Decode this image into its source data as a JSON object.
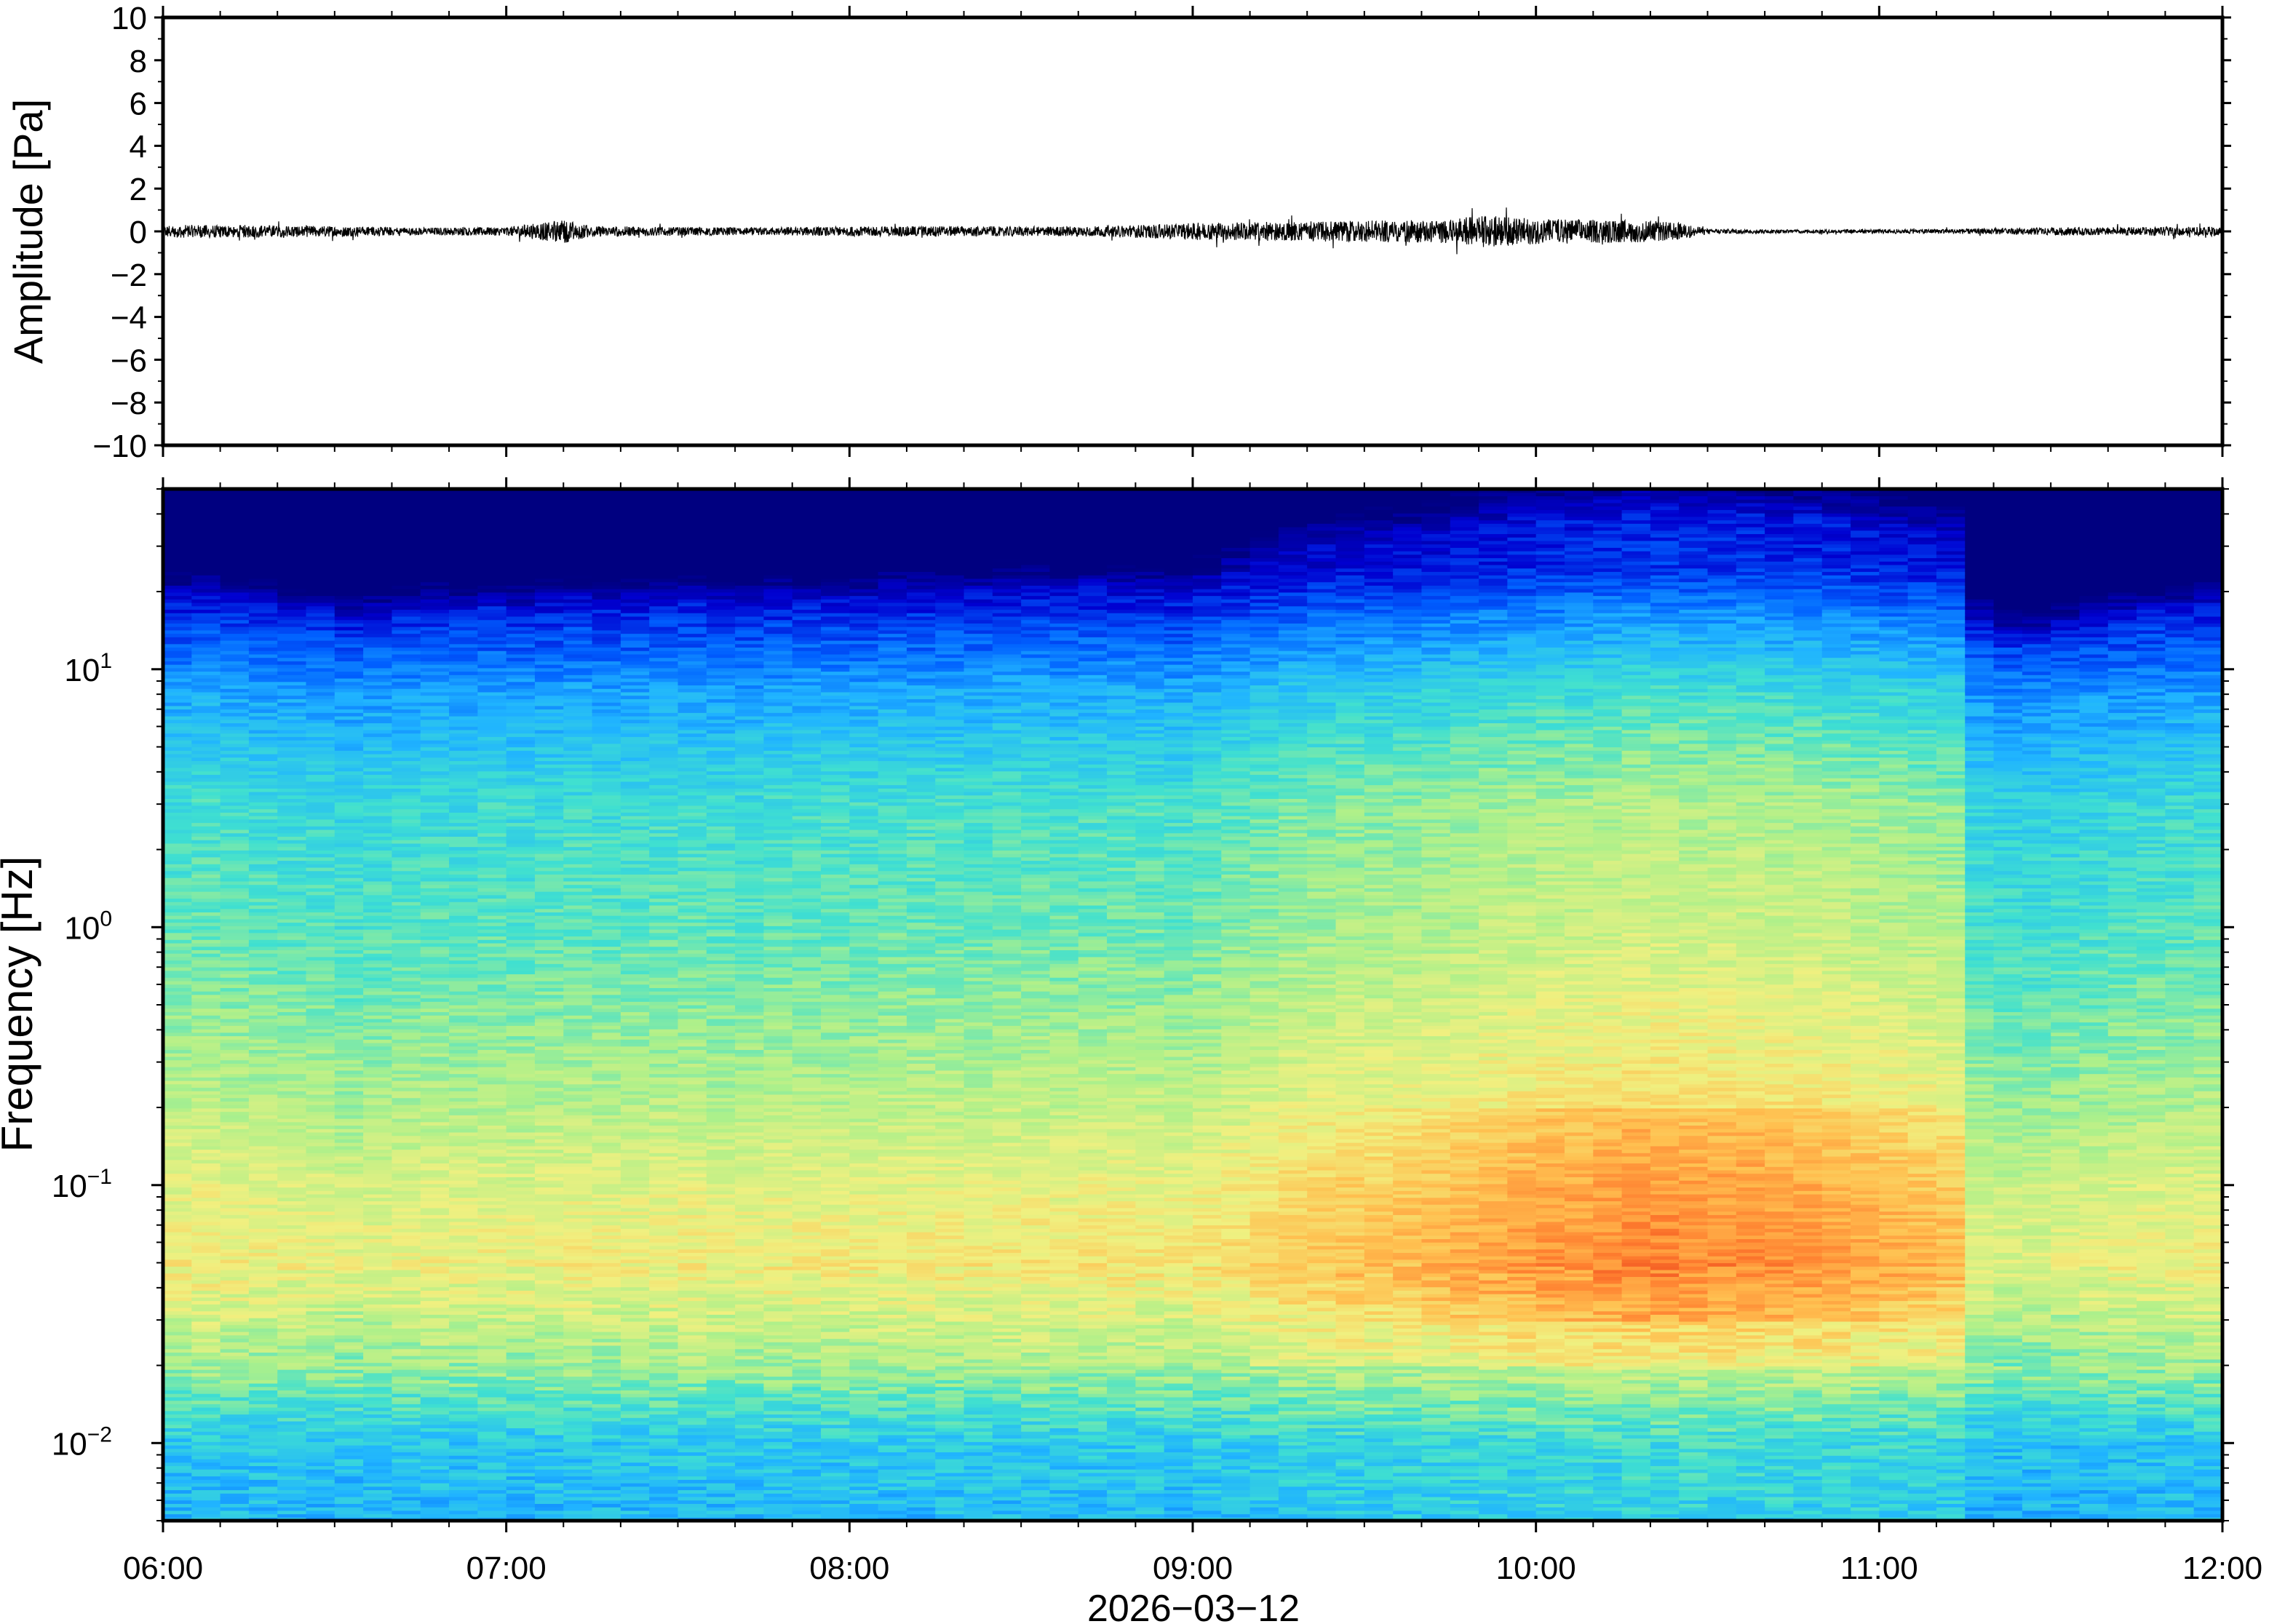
{
  "chart_data": [
    {
      "type": "line",
      "panel": "waveform",
      "ylabel": "Amplitude [Pa]",
      "ylim": [
        -10,
        10
      ],
      "yticks": [
        "10",
        "8",
        "6",
        "4",
        "2",
        "0",
        "−2",
        "−4",
        "−6",
        "−8",
        "−10"
      ],
      "ytick_values": [
        10,
        8,
        6,
        4,
        2,
        0,
        -2,
        -4,
        -6,
        -8,
        -10
      ],
      "xlim": [
        "2026-03-12T06:00",
        "2026-03-12T12:00"
      ],
      "series": [
        {
          "color": "#000000",
          "envelope_x": [
            "06:00",
            "06:15",
            "06:30",
            "06:45",
            "07:00",
            "07:10",
            "07:15",
            "07:30",
            "07:45",
            "08:00",
            "08:15",
            "08:30",
            "08:45",
            "09:00",
            "09:15",
            "09:30",
            "09:45",
            "09:50",
            "10:00",
            "10:10",
            "10:20",
            "10:25",
            "10:30",
            "10:45",
            "11:00",
            "11:15",
            "11:30",
            "11:45",
            "12:00"
          ],
          "envelope_amplitude": [
            0.3,
            0.3,
            0.25,
            0.18,
            0.2,
            0.55,
            0.25,
            0.2,
            0.18,
            0.22,
            0.25,
            0.22,
            0.25,
            0.4,
            0.45,
            0.5,
            0.55,
            0.75,
            0.6,
            0.55,
            0.5,
            0.4,
            0.12,
            0.08,
            0.1,
            0.12,
            0.18,
            0.2,
            0.22
          ]
        }
      ]
    },
    {
      "type": "heatmap",
      "panel": "spectrogram",
      "ylabel": "Frequency [Hz]",
      "yscale": "log",
      "ylim": [
        0.005,
        50
      ],
      "yticks": [
        {
          "base": "10",
          "exp": "−2",
          "value": 0.01
        },
        {
          "base": "10",
          "exp": "−1",
          "value": 0.1
        },
        {
          "base": "10",
          "exp": "0",
          "value": 1
        },
        {
          "base": "10",
          "exp": "1",
          "value": 10
        }
      ],
      "xlim": [
        "2026-03-12T06:00",
        "2026-03-12T12:00"
      ],
      "xticks": [
        "06:00",
        "07:00",
        "08:00",
        "09:00",
        "10:00",
        "11:00",
        "12:00"
      ],
      "xlabel": "2026−03−12",
      "colormap": "jet",
      "colormap_stops": [
        "#000080",
        "#0000d0",
        "#0060ff",
        "#20b4ff",
        "#40e0d0",
        "#aef08a",
        "#f0f080",
        "#ffc050",
        "#ff8030",
        "#e02010"
      ],
      "time_columns": 72,
      "time_column_minutes": 5,
      "relative_energy_by_time": [
        0.0,
        0.05,
        0.0,
        -0.05,
        -0.1,
        -0.1,
        -0.2,
        -0.15,
        -0.1,
        -0.05,
        -0.1,
        -0.05,
        -0.1,
        -0.05,
        0.0,
        -0.05,
        -0.05,
        0.0,
        0.0,
        -0.05,
        -0.05,
        0.0,
        0.0,
        0.0,
        0.0,
        0.05,
        0.05,
        0.05,
        0.05,
        0.1,
        0.1,
        0.05,
        0.1,
        0.1,
        0.1,
        0.05,
        0.15,
        0.25,
        0.35,
        0.45,
        0.5,
        0.55,
        0.55,
        0.6,
        0.65,
        0.7,
        0.75,
        0.8,
        0.85,
        0.85,
        0.9,
        0.95,
        0.95,
        0.9,
        0.9,
        0.9,
        0.85,
        0.85,
        0.8,
        0.75,
        0.7,
        0.65,
        0.6,
        -0.2,
        -0.3,
        -0.3,
        -0.25,
        -0.2,
        -0.15,
        -0.1,
        -0.1,
        -0.05
      ],
      "level_by_frequency": [
        {
          "hz": 0.005,
          "level": 0.35
        },
        {
          "hz": 0.01,
          "level": 0.38
        },
        {
          "hz": 0.02,
          "level": 0.55
        },
        {
          "hz": 0.05,
          "level": 0.68
        },
        {
          "hz": 0.1,
          "level": 0.64
        },
        {
          "hz": 0.2,
          "level": 0.58
        },
        {
          "hz": 0.5,
          "level": 0.52
        },
        {
          "hz": 1,
          "level": 0.48
        },
        {
          "hz": 3,
          "level": 0.44
        },
        {
          "hz": 8,
          "level": 0.32
        },
        {
          "hz": 15,
          "level": 0.18
        },
        {
          "hz": 25,
          "level": 0.04
        },
        {
          "hz": 50,
          "level": 0.0
        }
      ],
      "upper_cutoff_hz_range": [
        12,
        40
      ]
    }
  ]
}
